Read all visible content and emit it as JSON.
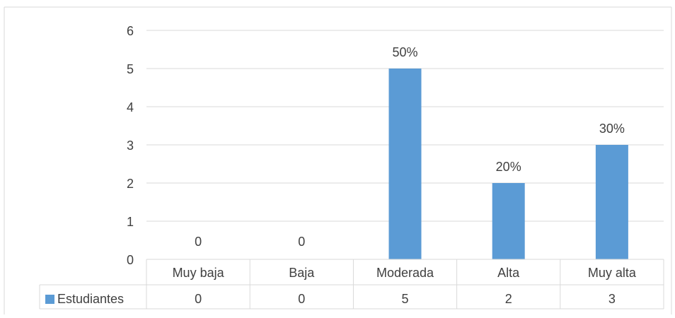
{
  "chart_data": {
    "type": "bar",
    "title": "",
    "xlabel": "",
    "ylabel": "",
    "categories": [
      "Muy baja",
      "Baja",
      "Moderada",
      "Alta",
      "Muy alta"
    ],
    "series": [
      {
        "name": "Estudiantes",
        "values": [
          0,
          0,
          5,
          2,
          3
        ],
        "color": "#5b9bd5",
        "data_labels": [
          "0",
          "0",
          "50%",
          "20%",
          "30%"
        ]
      }
    ],
    "ylim": [
      0,
      6
    ],
    "yticks": [
      0,
      1,
      2,
      3,
      4,
      5,
      6
    ],
    "grid": true,
    "legend": "data-table",
    "data_table": {
      "series_label": "Estudiantes",
      "values": [
        "0",
        "0",
        "5",
        "2",
        "3"
      ]
    }
  }
}
